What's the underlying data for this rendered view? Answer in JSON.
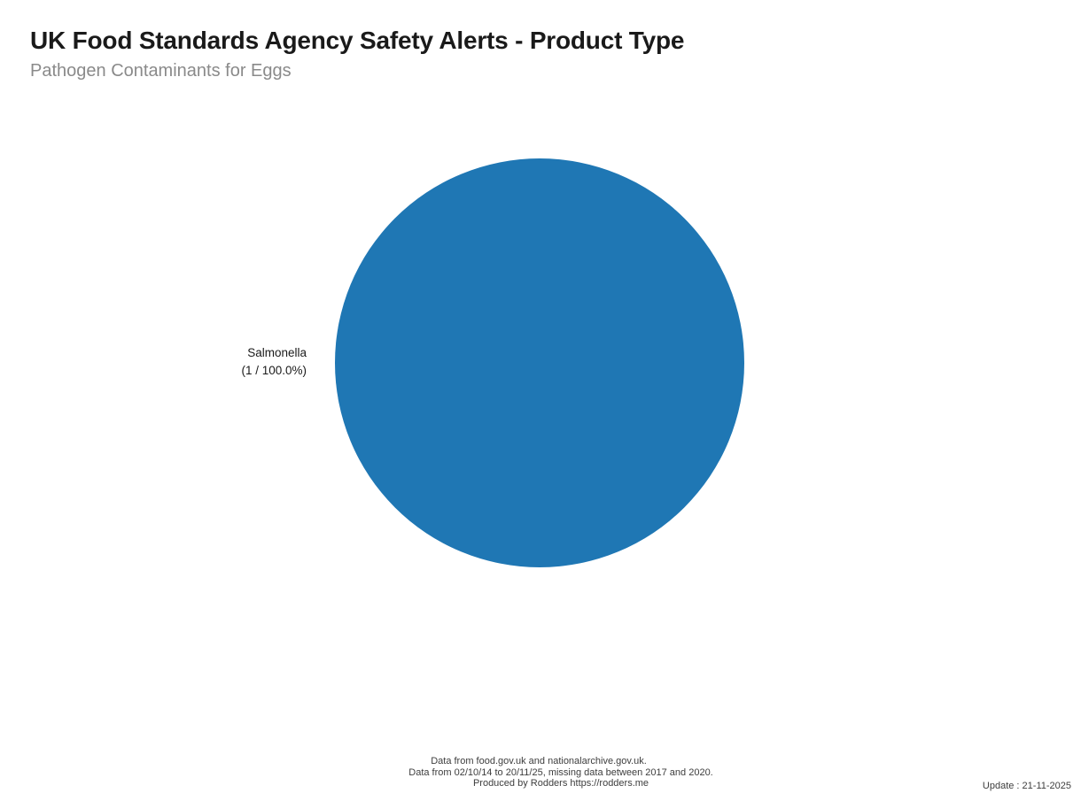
{
  "header": {
    "title": "UK Food Standards Agency Safety Alerts - Product Type",
    "subtitle": "Pathogen Contaminants for Eggs"
  },
  "chart_data": {
    "type": "pie",
    "title": "UK Food Standards Agency Safety Alerts - Product Type",
    "subtitle": "Pathogen Contaminants for Eggs",
    "categories": [
      "Salmonella"
    ],
    "values": [
      1
    ],
    "percentages": [
      100.0
    ],
    "colors": [
      "#1f77b4"
    ],
    "legend_position": "none",
    "label_lines": [
      "Salmonella",
      "(1 / 100.0%)"
    ],
    "label_placement": "left-of-pie"
  },
  "footer": {
    "line1": "Data from food.gov.uk and nationalarchive.gov.uk.",
    "line2": "Data from 02/10/14 to 20/11/25, missing data between 2017 and 2020.",
    "line3": "Produced by Rodders https://rodders.me",
    "update": "Update : 21-11-2025"
  }
}
